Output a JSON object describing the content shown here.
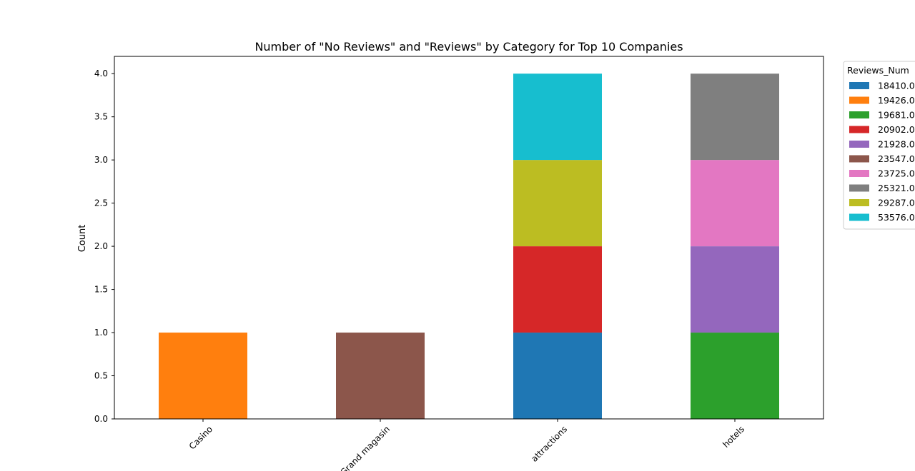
{
  "chart_data": {
    "type": "bar",
    "stacked": true,
    "title": "Number of \"No Reviews\" and \"Reviews\" by Category for Top 10 Companies",
    "xlabel": "",
    "ylabel": "Count",
    "ylim": [
      0,
      4.2
    ],
    "yticks": [
      "0.0",
      "0.5",
      "1.0",
      "1.5",
      "2.0",
      "2.5",
      "3.0",
      "3.5",
      "4.0"
    ],
    "grid": false,
    "legend_position": "outside-right",
    "legend_title": "Reviews_Num",
    "categories": [
      "Casino",
      "Grand magasin",
      "attractions",
      "hotels"
    ],
    "series": [
      {
        "name": "18410.0",
        "color": "#1f77b4",
        "values": [
          0,
          0,
          1,
          0
        ]
      },
      {
        "name": "19426.0",
        "color": "#ff7f0e",
        "values": [
          1,
          0,
          0,
          0
        ]
      },
      {
        "name": "19681.0",
        "color": "#2ca02c",
        "values": [
          0,
          0,
          0,
          1
        ]
      },
      {
        "name": "20902.0",
        "color": "#d62728",
        "values": [
          0,
          0,
          1,
          0
        ]
      },
      {
        "name": "21928.0",
        "color": "#9467bd",
        "values": [
          0,
          0,
          0,
          1
        ]
      },
      {
        "name": "23547.0",
        "color": "#8c564b",
        "values": [
          0,
          1,
          0,
          0
        ]
      },
      {
        "name": "23725.0",
        "color": "#e377c2",
        "values": [
          0,
          0,
          0,
          1
        ]
      },
      {
        "name": "25321.0",
        "color": "#7f7f7f",
        "values": [
          0,
          0,
          0,
          1
        ]
      },
      {
        "name": "29287.0",
        "color": "#bcbd22",
        "values": [
          0,
          0,
          1,
          0
        ]
      },
      {
        "name": "53576.0",
        "color": "#17becf",
        "values": [
          0,
          0,
          1,
          0
        ]
      }
    ]
  }
}
